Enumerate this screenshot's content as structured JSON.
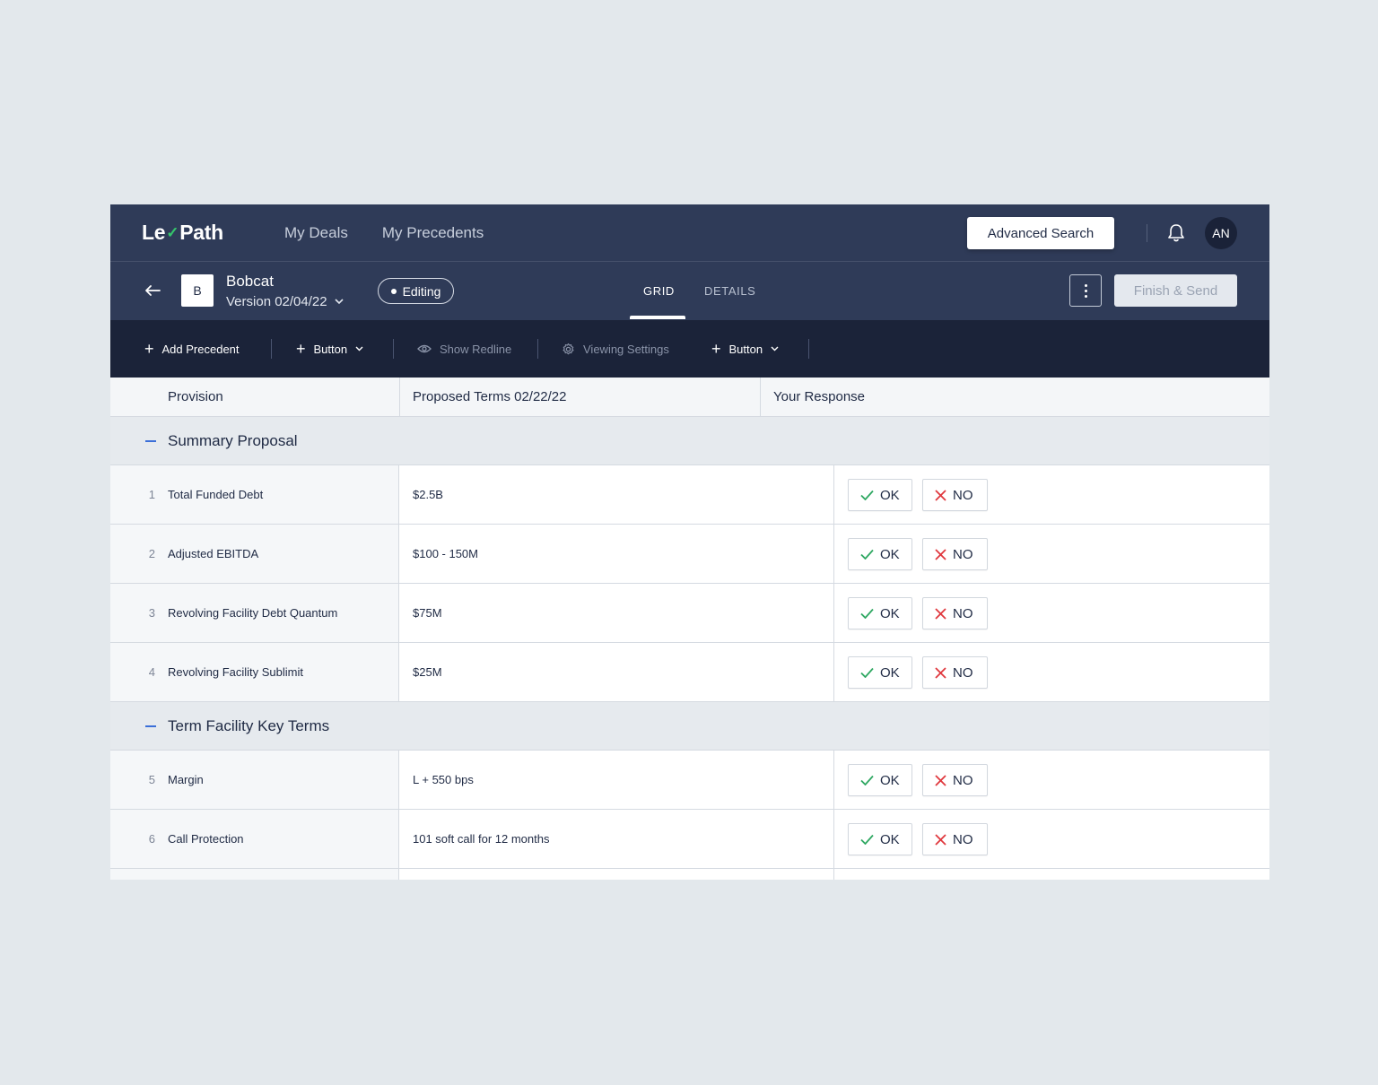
{
  "brand": {
    "name_left": "Le",
    "name_right": "Path",
    "check_glyph": "✓"
  },
  "nav": {
    "links": [
      "My Deals",
      "My Precedents"
    ],
    "advanced_search": "Advanced Search",
    "avatar_initials": "AN"
  },
  "deal": {
    "badge": "B",
    "name": "Bobcat",
    "version": "Version 02/04/22",
    "status": "Editing"
  },
  "tabs": {
    "grid": "GRID",
    "details": "DETAILS",
    "active": "GRID"
  },
  "actions": {
    "finish": "Finish & Send"
  },
  "toolbar": {
    "add_precedent": "Add Precedent",
    "button1": "Button",
    "show_redline": "Show Redline",
    "viewing_settings": "Viewing Settings",
    "button2": "Button"
  },
  "table": {
    "headers": {
      "provision": "Provision",
      "proposed": "Proposed Terms 02/22/22",
      "response": "Your Response"
    },
    "ok_label": "OK",
    "no_label": "NO",
    "groups": [
      {
        "title": "Summary Proposal",
        "rows": [
          {
            "num": "1",
            "provision": "Total Funded Debt",
            "term": "$2.5B"
          },
          {
            "num": "2",
            "provision": "Adjusted EBITDA",
            "term": "$100 - 150M"
          },
          {
            "num": "3",
            "provision": "Revolving Facility Debt Quantum",
            "term": "$75M"
          },
          {
            "num": "4",
            "provision": "Revolving Facility Sublimit",
            "term": "$25M"
          }
        ]
      },
      {
        "title": "Term Facility Key Terms",
        "rows": [
          {
            "num": "5",
            "provision": "Margin",
            "term": "L + 550 bps"
          },
          {
            "num": "6",
            "provision": "Call Protection",
            "term": "101 soft call for 12 months"
          }
        ]
      }
    ]
  },
  "colors": {
    "nav_bg": "#2f3b58",
    "toolbar_bg": "#1b2339",
    "ok_check": "#2fa862",
    "no_x": "#e0383e",
    "accent": "#3b6fd8"
  }
}
